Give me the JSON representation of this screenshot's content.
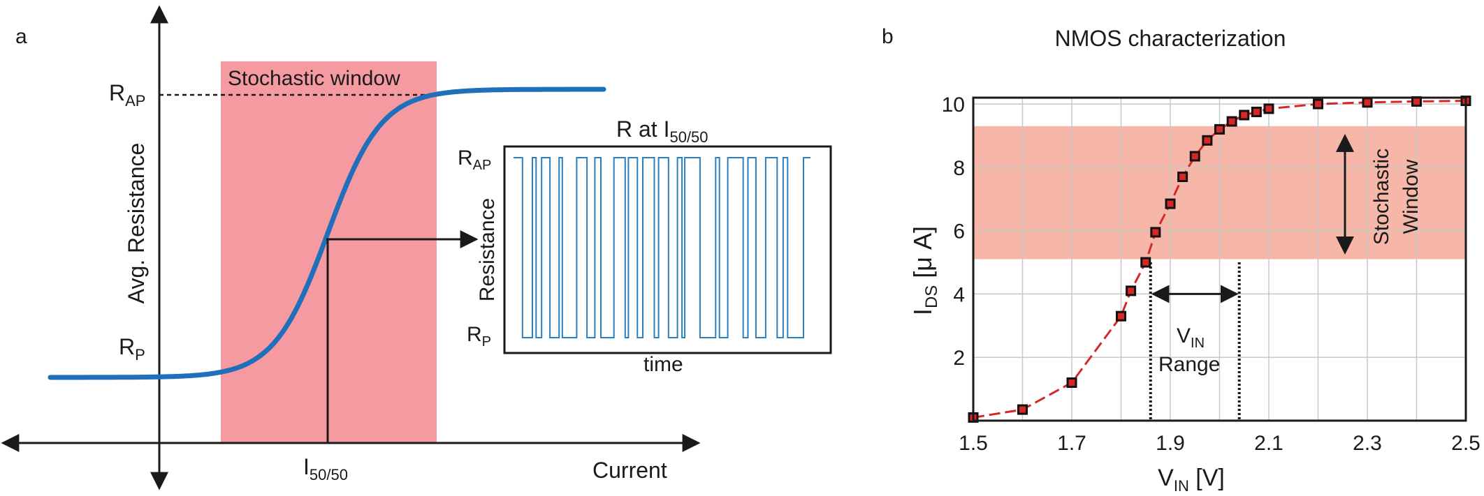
{
  "panel_a": {
    "label": "a",
    "window_label": "Stochastic window",
    "ylabel": "Avg. Resistance",
    "r_ap": {
      "main": "R",
      "sub": "AP"
    },
    "r_p": {
      "main": "R",
      "sub": "P"
    },
    "i_label": {
      "main": "I",
      "sub": "50/50"
    },
    "xlabel": "Current",
    "colors": {
      "curve": "#1f6fba",
      "window": "#f59aa1"
    },
    "inset": {
      "title": {
        "main": "R at I",
        "sub": "50/50"
      },
      "ylabel": "Resistance",
      "xlabel": "time",
      "r_ap": {
        "main": "R",
        "sub": "AP"
      },
      "r_p": {
        "main": "R",
        "sub": "P"
      },
      "color": "#2a7fc1"
    }
  },
  "panel_b": {
    "label": "b",
    "title": "NMOS characterization",
    "ylabel": {
      "main": "I",
      "sub": "DS",
      "rest": " [μ A]"
    },
    "xlabel": {
      "main": "V",
      "sub": "IN",
      "rest": " [V]"
    },
    "window_label_1": "Stochastic",
    "window_label_2": "Window",
    "range_label": {
      "main": "V",
      "sub": "IN",
      "line2": "Range"
    },
    "colors": {
      "line": "#d62728",
      "marker_fill": "#d62728",
      "marker_edge": "#111111",
      "band": "#f7b7a8"
    }
  },
  "chart_data": [
    {
      "type": "line",
      "title": "",
      "xlabel": "Current",
      "ylabel": "Avg. Resistance",
      "annotations": [
        "Stochastic window",
        "R at I50/50",
        "RAP",
        "RP",
        "I50/50"
      ],
      "series": [
        {
          "name": "",
          "shape": "sigmoid"
        }
      ]
    },
    {
      "type": "line",
      "title": "NMOS characterization",
      "xlabel": "VIN [V]",
      "ylabel": "IDS [μ A]",
      "xlim": [
        1.5,
        2.5
      ],
      "ylim": [
        0,
        10.2
      ],
      "x_ticks": [
        "1.5",
        "1.7",
        "1.9",
        "2.1",
        "2.3",
        "2.5"
      ],
      "y_ticks": [
        "2",
        "4",
        "6",
        "8",
        "10"
      ],
      "grid": true,
      "stochastic_window": [
        5.1,
        9.3
      ],
      "vin_range": [
        1.86,
        2.04
      ],
      "series": [
        {
          "name": "",
          "x": [
            1.5,
            1.6,
            1.7,
            1.8,
            1.82,
            1.85,
            1.87,
            1.9,
            1.925,
            1.95,
            1.975,
            2.0,
            2.025,
            2.05,
            2.075,
            2.1,
            2.2,
            2.3,
            2.4,
            2.5
          ],
          "y": [
            0.1,
            0.35,
            1.2,
            3.3,
            4.1,
            5.0,
            5.95,
            6.85,
            7.7,
            8.35,
            8.85,
            9.2,
            9.45,
            9.65,
            9.75,
            9.85,
            10.0,
            10.05,
            10.08,
            10.1
          ]
        }
      ]
    }
  ]
}
